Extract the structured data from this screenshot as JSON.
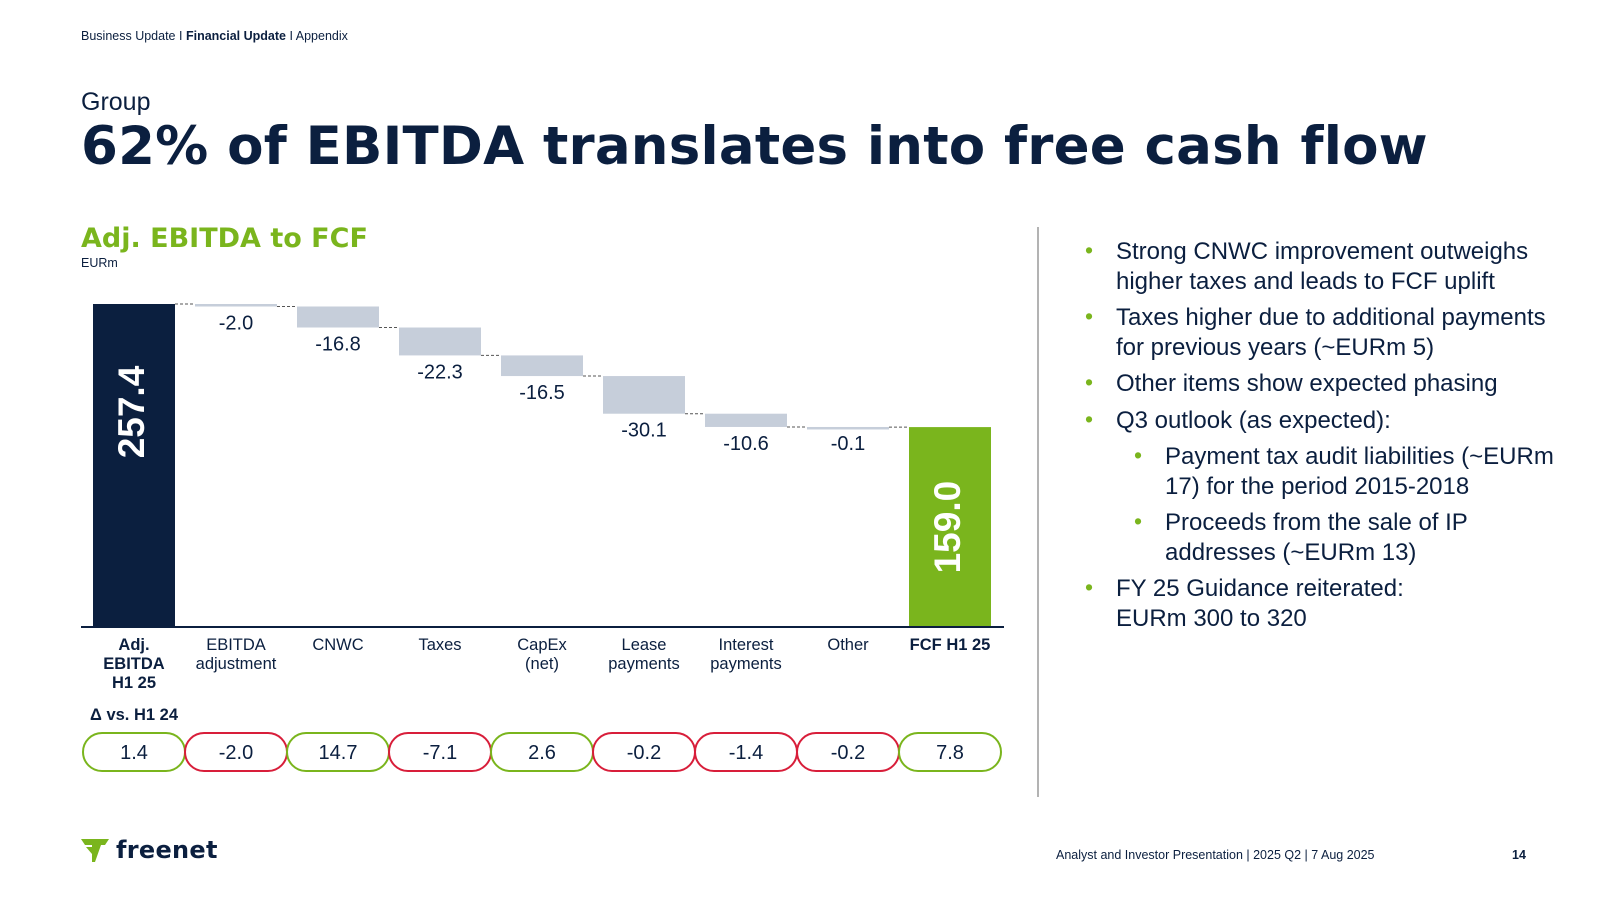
{
  "breadcrumb": {
    "item1": "Business Update",
    "sep1": "I",
    "item2": "Financial Update",
    "sep2": "I",
    "item3": "Appendix"
  },
  "header": {
    "subtitle": "Group",
    "title": "62% of EBITDA translates into free cash flow"
  },
  "chart_data": {
    "type": "waterfall",
    "title": "Adj. EBITDA to FCF",
    "unit": "EURm",
    "categories": [
      [
        "Adj.",
        "EBITDA",
        "H1 25"
      ],
      [
        "EBITDA",
        "adjustment"
      ],
      [
        "CNWC"
      ],
      [
        "Taxes"
      ],
      [
        "CapEx",
        "(net)"
      ],
      [
        "Lease",
        "payments"
      ],
      [
        "Interest",
        "payments"
      ],
      [
        "Other"
      ],
      [
        "FCF H1 25"
      ]
    ],
    "category_bold": [
      true,
      false,
      false,
      false,
      false,
      false,
      false,
      false,
      true
    ],
    "values": [
      257.4,
      -2.0,
      -16.8,
      -22.3,
      -16.5,
      -30.1,
      -10.6,
      -0.1,
      159.0
    ],
    "value_labels": [
      "257.4",
      "-2.0",
      "-16.8",
      "-22.3",
      "-16.5",
      "-30.1",
      "-10.6",
      "-0.1",
      "159.0"
    ],
    "bar_kind": [
      "total",
      "delta",
      "delta",
      "delta",
      "delta",
      "delta",
      "delta",
      "delta",
      "total"
    ],
    "ylim": [
      0,
      257.4
    ],
    "delta_title": "Δ vs. H1 24",
    "delta_values": [
      1.4,
      -2.0,
      14.7,
      -7.1,
      2.6,
      -0.2,
      -1.4,
      -0.2,
      7.8
    ],
    "delta_labels": [
      "1.4",
      "-2.0",
      "14.7",
      "-7.1",
      "2.6",
      "-0.2",
      "-1.4",
      "-0.2",
      "7.8"
    ],
    "colors": {
      "start_total": "#0b1f3f",
      "end_total": "#7ab51d",
      "delta_bar": "#c6ceda",
      "positive_pill": "#7ab51d",
      "negative_pill": "#d81e3a",
      "connector": "#555555",
      "axis": "#0b1f3f"
    }
  },
  "bullets": [
    {
      "text": "Strong CNWC improvement outweighs higher taxes and leads to FCF uplift",
      "level": 1
    },
    {
      "text": "Taxes higher due to additional payments for previous years (~EURm 5)",
      "level": 1
    },
    {
      "text": "Other items show expected phasing",
      "level": 1
    },
    {
      "text": "Q3 outlook (as expected):",
      "level": 1
    },
    {
      "text": "Payment tax audit liabilities (~EURm 17) for the period 2015-2018",
      "level": 2
    },
    {
      "text": "Proceeds from the sale of IP addresses (~EURm 13)",
      "level": 2
    },
    {
      "text": "FY 25 Guidance reiterated:",
      "text2": "EURm 300 to 320",
      "level": 1
    }
  ],
  "footer": {
    "logo_text": "freenet",
    "logo_icon": "freenet-logo-icon",
    "presentation": "Analyst and Investor Presentation | 2025 Q2 | 7 Aug 2025",
    "page": "14"
  }
}
